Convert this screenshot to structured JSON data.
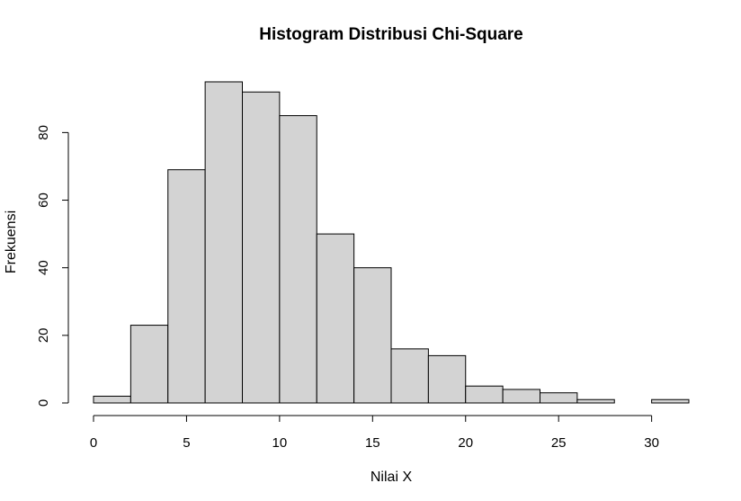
{
  "chart_data": {
    "type": "bar",
    "title": "Histogram Distribusi Chi-Square",
    "xlabel": "Nilai X",
    "ylabel": "Frekuensi",
    "bin_edges": [
      0,
      2,
      4,
      6,
      8,
      10,
      12,
      14,
      16,
      18,
      20,
      22,
      24,
      26,
      28,
      30,
      32
    ],
    "values": [
      2,
      23,
      69,
      95,
      92,
      85,
      50,
      40,
      16,
      14,
      5,
      4,
      3,
      1,
      0,
      1
    ],
    "xticks": [
      0,
      5,
      10,
      15,
      20,
      25,
      30
    ],
    "yticks": [
      0,
      20,
      40,
      60,
      80
    ],
    "xlim": [
      0,
      32
    ],
    "ylim": [
      0,
      95
    ],
    "grid": false,
    "bar_color": "#d3d3d3",
    "edge_color": "#000000"
  }
}
